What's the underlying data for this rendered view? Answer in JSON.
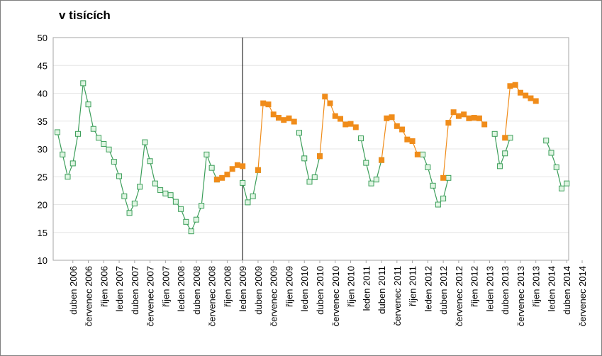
{
  "chart_data": {
    "type": "line",
    "title": "v tisících",
    "xlabel": "",
    "ylabel": "",
    "ylim": [
      10,
      50
    ],
    "yticks": [
      10,
      15,
      20,
      25,
      30,
      35,
      40,
      45,
      50
    ],
    "grid": true,
    "legend": "none",
    "start_month": "2006-01",
    "x_tick_labels": [
      "duben 2006",
      "červenec 2006",
      "říjen 2006",
      "leden 2007",
      "duben 2007",
      "červenec 2007",
      "říjen 2007",
      "leden 2008",
      "duben 2008",
      "červenec 2008",
      "říjen 2008",
      "leden 2009",
      "duben 2009",
      "červenec 2009",
      "říjen 2009",
      "leden 2010",
      "duben 2010",
      "červenec 2010",
      "říjen 2010",
      "leden 2011",
      "duben 2011",
      "červenec 2011",
      "říjen 2011",
      "leden 2012",
      "duben 2012",
      "červenec 2012",
      "říjen 2012",
      "leden 2013",
      "duben 2013",
      "červenec 2013",
      "říjen 2013",
      "leden 2014",
      "duben 2014",
      "červenec 2014"
    ],
    "vertical_line_at": "leden 2009",
    "series": [
      {
        "color": "#3c9e5a",
        "marker_fill": "#dff5e2",
        "values": [
          33.0,
          29.0,
          25.0,
          27.4,
          32.7,
          41.8,
          38.0,
          33.6,
          32.0,
          30.9,
          29.9,
          27.7,
          25.1,
          21.5,
          18.5,
          20.2,
          23.2,
          31.2,
          27.8,
          23.8,
          22.6,
          22.0,
          21.7,
          20.5,
          19.2,
          16.9,
          15.2,
          17.3,
          19.8,
          29.0,
          26.6,
          24.5,
          null,
          null,
          null,
          null,
          23.9,
          20.4,
          21.5,
          26.2,
          null,
          null,
          null,
          null,
          null,
          null,
          null,
          32.9,
          28.3,
          24.1,
          24.9,
          28.7,
          null,
          null,
          null,
          null,
          null,
          null,
          null,
          31.9,
          27.5,
          23.8,
          24.5,
          28.0,
          null,
          null,
          null,
          null,
          null,
          null,
          null,
          29.0,
          26.7,
          23.4,
          20.0,
          21.1,
          24.8,
          null,
          null,
          null,
          null,
          null,
          null,
          null,
          null,
          32.7,
          26.9,
          29.2,
          32.0,
          null,
          null,
          null,
          null,
          null,
          null,
          31.5,
          29.3,
          26.7,
          22.9,
          23.8
        ]
      },
      {
        "color": "#f08c1a",
        "marker_fill": "#f08c1a",
        "values": [
          null,
          null,
          null,
          null,
          null,
          null,
          null,
          null,
          null,
          null,
          null,
          null,
          null,
          null,
          null,
          null,
          null,
          null,
          null,
          null,
          null,
          null,
          null,
          null,
          null,
          null,
          null,
          null,
          null,
          null,
          null,
          24.5,
          24.8,
          25.4,
          26.4,
          27.1,
          26.9,
          null,
          null,
          26.2,
          38.2,
          38.0,
          36.2,
          35.6,
          35.2,
          35.5,
          34.9,
          null,
          null,
          null,
          null,
          28.7,
          39.4,
          38.2,
          35.9,
          35.4,
          34.4,
          34.5,
          33.9,
          null,
          null,
          null,
          null,
          28.0,
          35.5,
          35.7,
          34.1,
          33.5,
          31.7,
          31.4,
          29.0,
          null,
          null,
          null,
          null,
          24.8,
          34.7,
          36.6,
          35.9,
          36.2,
          35.5,
          35.6,
          35.5,
          34.4,
          null,
          null,
          null,
          32.0,
          41.3,
          41.5,
          40.1,
          39.6,
          39.1,
          38.6,
          null,
          null,
          null,
          null,
          null
        ]
      }
    ]
  }
}
